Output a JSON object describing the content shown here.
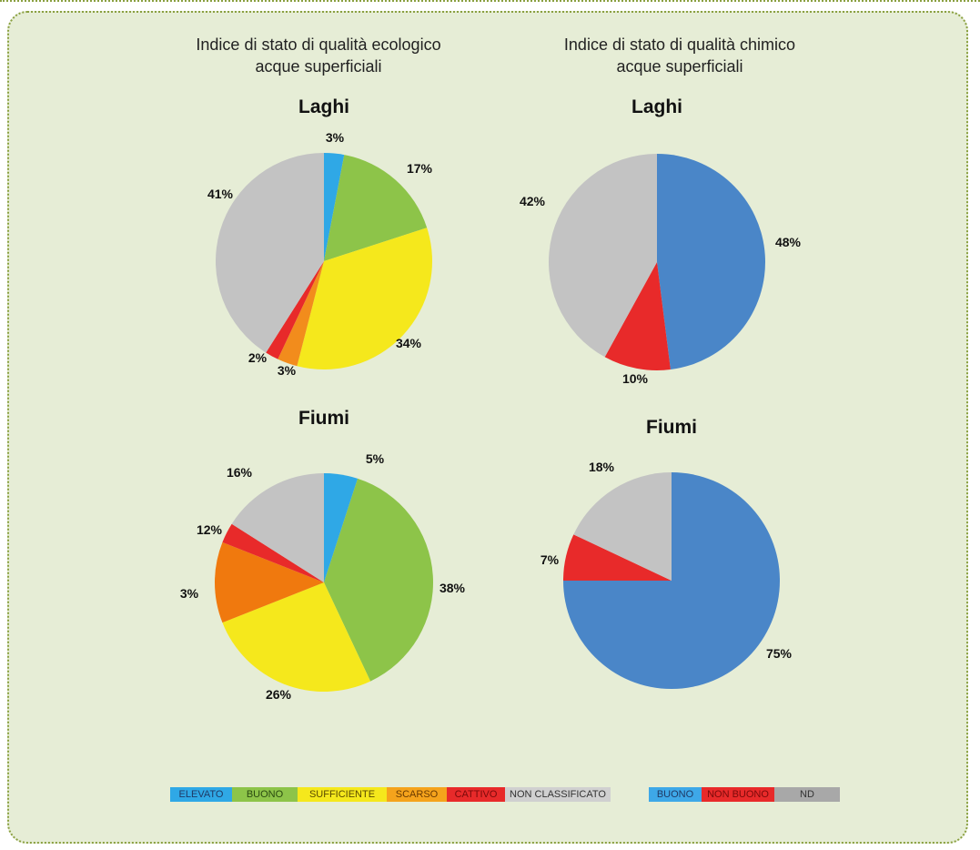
{
  "ecologico": {
    "title_line1": "Indice di stato di qualità ecologico",
    "title_line2": "acque superficiali"
  },
  "chimico": {
    "title_line1": "Indice di stato di qualità chimico",
    "title_line2": "acque superficiali"
  },
  "chart_data": [
    {
      "type": "pie",
      "title": "Laghi",
      "group": "ecologico",
      "categories": [
        "ELEVATO",
        "BUONO",
        "SUFFICIENTE",
        "SCARSO",
        "CATTIVO",
        "NON CLASSIFICATO"
      ],
      "values": [
        3,
        17,
        34,
        3,
        2,
        41
      ],
      "labels": [
        "3%",
        "17%",
        "34%",
        "3%",
        "2%",
        "41%"
      ],
      "colors": [
        "#2fa8e6",
        "#8dc449",
        "#f5e81c",
        "#f28c1c",
        "#e82a2a",
        "#c3c3c3"
      ]
    },
    {
      "type": "pie",
      "title": "Fiumi",
      "group": "ecologico",
      "categories": [
        "ELEVATO",
        "BUONO",
        "SUFFICIENTE",
        "SCARSO",
        "CATTIVO",
        "NON CLASSIFICATO"
      ],
      "values": [
        5,
        38,
        26,
        12,
        3,
        16
      ],
      "labels": [
        "5%",
        "38%",
        "26%",
        "12%",
        "3%",
        "16%"
      ],
      "colors": [
        "#2fa8e6",
        "#8dc449",
        "#f5e81c",
        "#f0790e",
        "#e82a2a",
        "#c3c3c3"
      ]
    },
    {
      "type": "pie",
      "title": "Laghi",
      "group": "chimico",
      "categories": [
        "BUONO",
        "NON BUONO",
        "ND"
      ],
      "values": [
        48,
        10,
        42
      ],
      "labels": [
        "48%",
        "10%",
        "42%"
      ],
      "colors": [
        "#4a86c8",
        "#e82a2a",
        "#c3c3c3"
      ]
    },
    {
      "type": "pie",
      "title": "Fiumi",
      "group": "chimico",
      "categories": [
        "BUONO",
        "NON BUONO",
        "ND"
      ],
      "values": [
        75,
        7,
        18
      ],
      "labels": [
        "75%",
        "7%",
        "18%"
      ],
      "colors": [
        "#4a86c8",
        "#e82a2a",
        "#c3c3c3"
      ]
    }
  ],
  "legend_ecologico": [
    {
      "label": "ELEVATO",
      "bg": "#2fa8e6",
      "fg": "#1f3a66"
    },
    {
      "label": "BUONO",
      "bg": "#8dc449",
      "fg": "#2a4a10"
    },
    {
      "label": "SUFFICIENTE",
      "bg": "#f5e81c",
      "fg": "#5a4a00"
    },
    {
      "label": "SCARSO",
      "bg": "#f5a31c",
      "fg": "#6a3a00"
    },
    {
      "label": "CATTIVO",
      "bg": "#e82a2a",
      "fg": "#7a0a0a"
    },
    {
      "label": "NON CLASSIFICATO",
      "bg": "#d0d0d0",
      "fg": "#333333"
    }
  ],
  "legend_chimico": [
    {
      "label": "BUONO",
      "bg": "#3ea8e8",
      "fg": "#1f3a66"
    },
    {
      "label": "NON BUONO",
      "bg": "#e82a2a",
      "fg": "#7a0a0a"
    },
    {
      "label": "ND",
      "bg": "#a8a8a8",
      "fg": "#333333"
    }
  ]
}
